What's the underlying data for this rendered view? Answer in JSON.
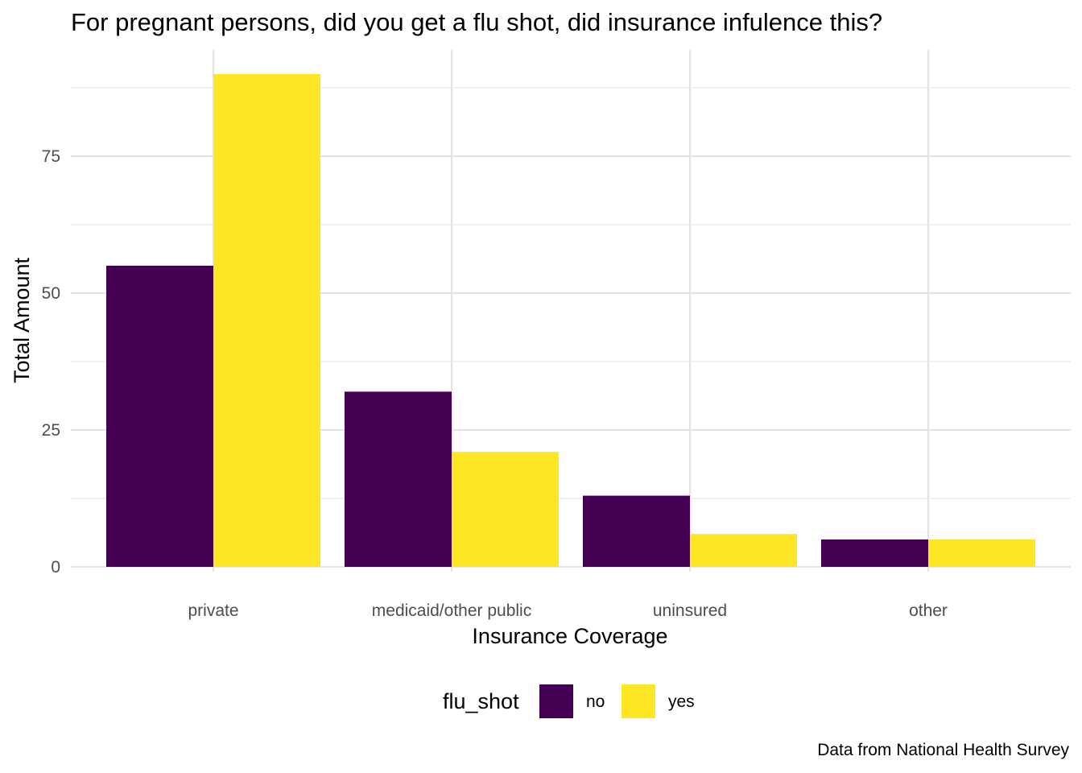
{
  "chart_data": {
    "type": "bar",
    "title": "For pregnant persons, did you get a flu shot, did insurance infulence this?",
    "xlabel": "Insurance Coverage",
    "ylabel": "Total Amount",
    "caption": "Data from National Health Survey",
    "categories": [
      "private",
      "medicaid/other public",
      "uninsured",
      "other"
    ],
    "series": [
      {
        "name": "no",
        "values": [
          55,
          32,
          13,
          5
        ],
        "color": "#440154"
      },
      {
        "name": "yes",
        "values": [
          90,
          21,
          6,
          5
        ],
        "color": "#FDE725"
      }
    ],
    "ylim": [
      0,
      96
    ],
    "yticks": [
      0,
      25,
      50,
      75
    ],
    "yticklabels": [
      "0",
      "25",
      "50",
      "75"
    ],
    "grid": true,
    "legend": {
      "title": "flu_shot",
      "position": "bottom"
    }
  }
}
